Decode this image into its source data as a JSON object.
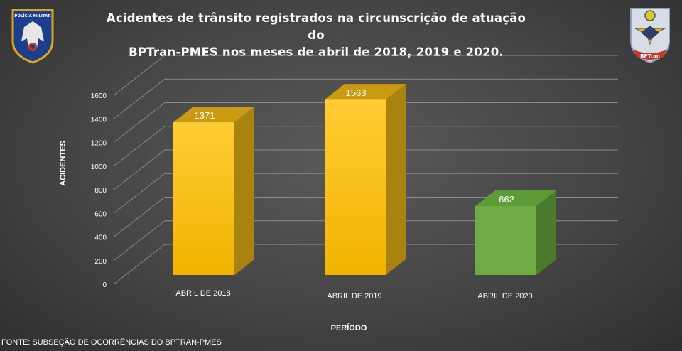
{
  "chart_data": {
    "type": "bar",
    "title_line1": "Acidentes de trânsito registrados na circunscrição de atuação do",
    "title_line2": "BPTran-PMES nos meses de abril de 2018, 2019 e 2020.",
    "xlabel": "PERÍODO",
    "ylabel": "ACIDENTES",
    "categories": [
      "ABRIL DE 2018",
      "ABRIL DE 2019",
      "ABRIL DE 2020"
    ],
    "values": [
      1371,
      1563,
      662
    ],
    "colors": [
      "#f5b800",
      "#f5b800",
      "#6eab45"
    ],
    "yticks": [
      0,
      200,
      400,
      600,
      800,
      1000,
      1200,
      1400,
      1600
    ],
    "ylim": [
      0,
      1600
    ],
    "grid": true,
    "legend": "none"
  },
  "logos": {
    "left_text": "POLÍCIA MILITAR",
    "right_text": "BPTran"
  },
  "source": "FONTE: SUBSEÇÃO DE OCORRÊNCIAS DO BPTRAN-PMES"
}
